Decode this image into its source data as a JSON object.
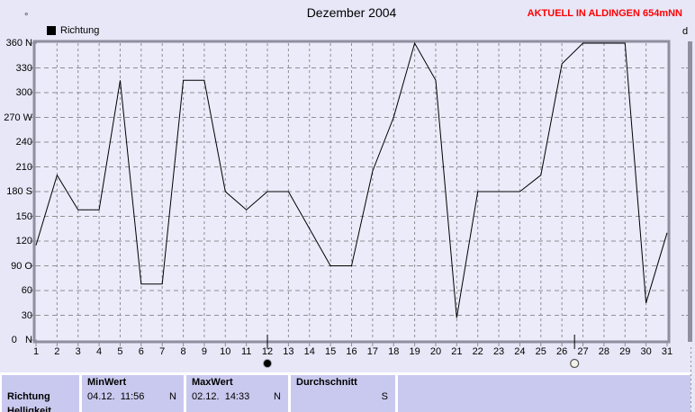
{
  "page": {
    "title": "Dezember 2004",
    "status_label": "AKTUELL IN ALDINGEN 654mNN",
    "degree_symbol": "°",
    "adjacent_chart_label": "d",
    "colors": {
      "page_bg": "#e7e7f8",
      "plot_bg": "#ebebfa",
      "border": "#8f8f9f",
      "grid": "#8f8f94",
      "line": "#000000",
      "cell_bg": "#c9c9ef",
      "accent_red": "#ff0000"
    }
  },
  "legend": {
    "series_label": "Richtung"
  },
  "chart_data": {
    "type": "line",
    "title": "Dezember 2004",
    "xlabel": "",
    "ylabel": "",
    "x": [
      1,
      2,
      3,
      4,
      5,
      6,
      7,
      8,
      9,
      10,
      11,
      12,
      13,
      14,
      15,
      16,
      17,
      18,
      19,
      20,
      21,
      22,
      23,
      24,
      25,
      26,
      27,
      28,
      29,
      30,
      31
    ],
    "series": [
      {
        "name": "Richtung",
        "values": [
          115,
          200,
          158,
          158,
          315,
          68,
          68,
          315,
          315,
          180,
          158,
          180,
          180,
          135,
          90,
          90,
          205,
          270,
          360,
          315,
          27,
          180,
          180,
          180,
          200,
          335,
          360,
          360,
          360,
          45,
          130
        ]
      }
    ],
    "ylim": [
      0,
      360
    ],
    "grid": true,
    "legend_position": "top-left",
    "line_color": "#000000",
    "yticks": [
      {
        "v": 0,
        "label": "0   N"
      },
      {
        "v": 30,
        "label": "30"
      },
      {
        "v": 60,
        "label": "60"
      },
      {
        "v": 90,
        "label": "90 O"
      },
      {
        "v": 120,
        "label": "120"
      },
      {
        "v": 150,
        "label": "150"
      },
      {
        "v": 180,
        "label": "180 S"
      },
      {
        "v": 210,
        "label": "210"
      },
      {
        "v": 240,
        "label": "240"
      },
      {
        "v": 270,
        "label": "270 W"
      },
      {
        "v": 300,
        "label": "300"
      },
      {
        "v": 330,
        "label": "330"
      },
      {
        "v": 360,
        "label": "360 N"
      }
    ],
    "markers": {
      "new_moon": {
        "day": 12,
        "symbol": "new-moon"
      },
      "full_moon": {
        "day": 26.6,
        "symbol": "full-moon"
      }
    }
  },
  "stats_table": {
    "row_label": "Richtung",
    "clipped_next_row_label": "Helligkeit",
    "min": {
      "header": "MinWert",
      "datetime": "04.12.  11:56",
      "value": "N"
    },
    "max": {
      "header": "MaxWert",
      "datetime": "02.12.  14:33",
      "value": "N"
    },
    "avg": {
      "header": "Durchschnitt",
      "value": "S"
    }
  }
}
